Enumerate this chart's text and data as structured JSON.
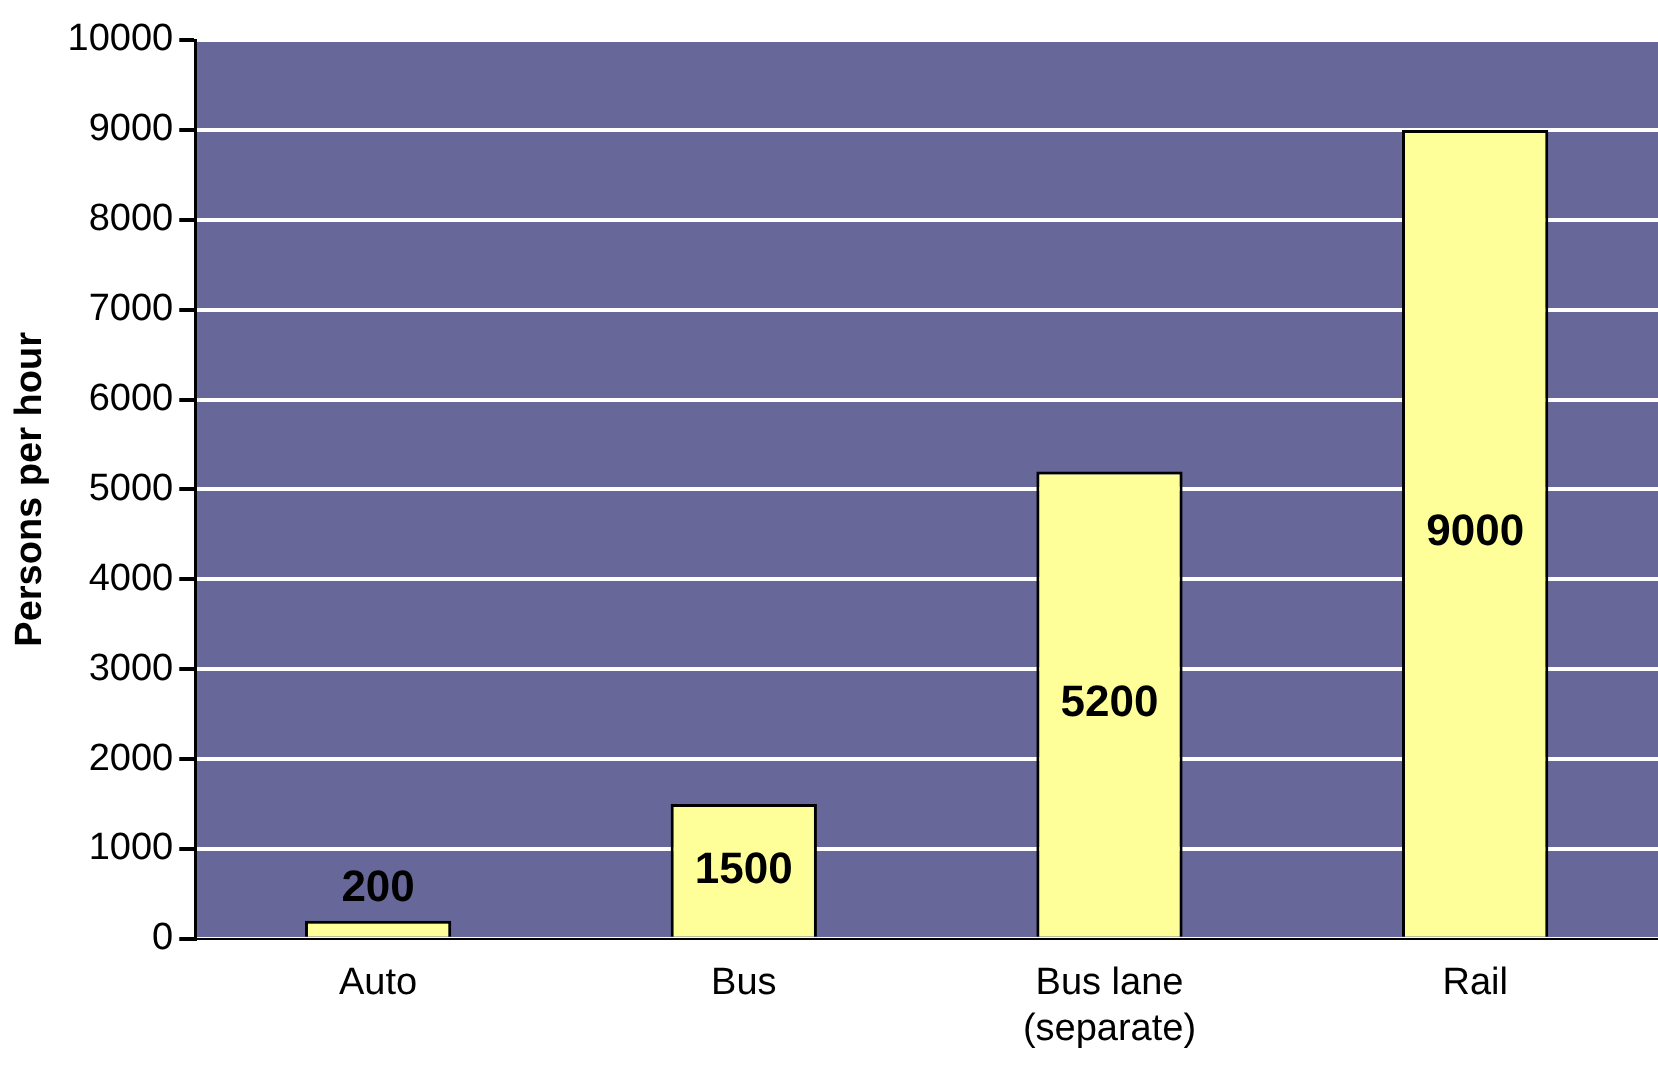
{
  "chart_data": {
    "type": "bar",
    "ylabel": "Persons per hour",
    "categories": [
      "Auto",
      "Bus",
      "Bus lane\n(separate)",
      "Rail"
    ],
    "values": [
      200,
      1500,
      5200,
      9000
    ],
    "color": "#ffff99",
    "ylim": [
      0,
      10000
    ],
    "yticks": [
      0,
      1000,
      2000,
      3000,
      4000,
      5000,
      6000,
      7000,
      8000,
      9000,
      10000
    ],
    "grid": "y",
    "data_labels": true,
    "legend": false
  }
}
